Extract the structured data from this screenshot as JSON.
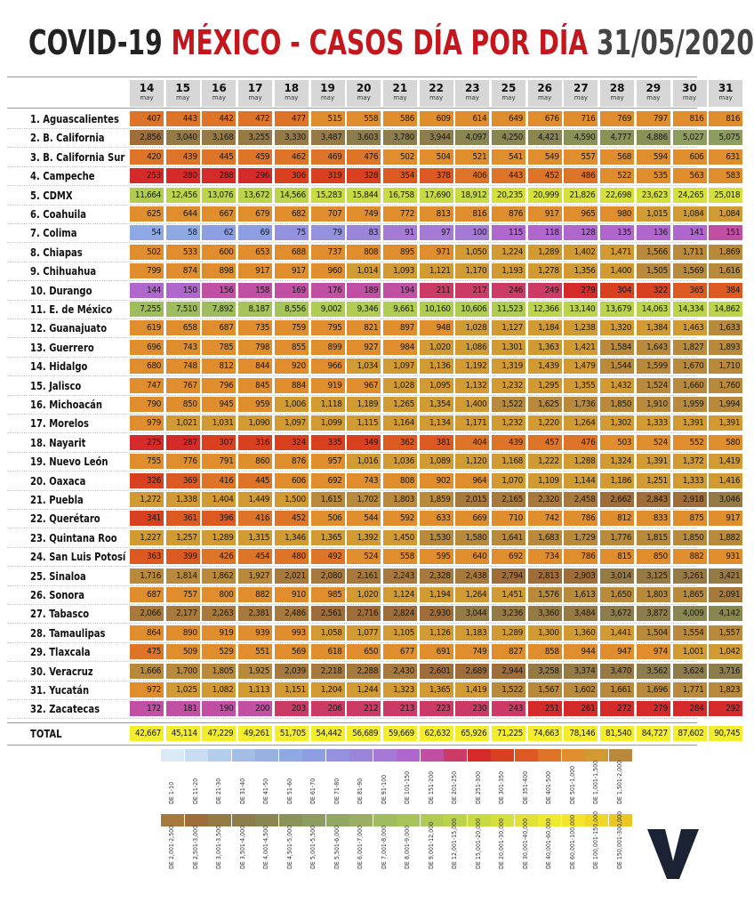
{
  "title": {
    "part1": "COVID-19 ",
    "part2": "MÉXICO - CASOS DÍA POR DÍA ",
    "part3": "31/05/2020"
  },
  "chart_data": {
    "type": "table",
    "month_label": "may",
    "days": [
      "14",
      "15",
      "16",
      "17",
      "18",
      "19",
      "20",
      "21",
      "22",
      "23",
      "25",
      "26",
      "27",
      "28",
      "29",
      "30",
      "31"
    ],
    "rows": [
      {
        "label": "1. Aguascalientes",
        "values": [
          407,
          443,
          442,
          472,
          477,
          515,
          558,
          586,
          609,
          614,
          649,
          676,
          716,
          769,
          797,
          816,
          816
        ]
      },
      {
        "label": "2. B. California",
        "values": [
          2856,
          3040,
          3168,
          3255,
          3330,
          3487,
          3603,
          3780,
          3944,
          4097,
          4250,
          4421,
          4590,
          4777,
          4886,
          5027,
          5075
        ]
      },
      {
        "label": "3. B. California Sur",
        "values": [
          420,
          439,
          445,
          459,
          462,
          469,
          476,
          502,
          504,
          521,
          541,
          549,
          557,
          568,
          594,
          606,
          631
        ]
      },
      {
        "label": "4. Campeche",
        "values": [
          253,
          280,
          288,
          296,
          306,
          319,
          328,
          354,
          378,
          406,
          443,
          452,
          486,
          522,
          535,
          563,
          583
        ]
      },
      {
        "label": "5. CDMX",
        "values": [
          11664,
          12456,
          13076,
          13672,
          14566,
          15283,
          15844,
          16758,
          17690,
          18912,
          20235,
          20999,
          21826,
          22698,
          23623,
          24265,
          25018
        ]
      },
      {
        "label": "6. Coahuila",
        "values": [
          625,
          644,
          667,
          679,
          682,
          707,
          749,
          772,
          813,
          816,
          876,
          917,
          965,
          980,
          1015,
          1084,
          1084
        ]
      },
      {
        "label": "7. Colima",
        "values": [
          54,
          58,
          62,
          69,
          75,
          79,
          83,
          91,
          97,
          100,
          115,
          118,
          128,
          135,
          136,
          141,
          151
        ]
      },
      {
        "label": "8. Chiapas",
        "values": [
          502,
          533,
          600,
          653,
          688,
          737,
          808,
          895,
          971,
          1050,
          1224,
          1289,
          1402,
          1471,
          1566,
          1711,
          1869
        ]
      },
      {
        "label": "9. Chihuahua",
        "values": [
          799,
          874,
          898,
          917,
          917,
          960,
          1014,
          1093,
          1121,
          1170,
          1193,
          1278,
          1356,
          1400,
          1505,
          1569,
          1616
        ]
      },
      {
        "label": "10. Durango",
        "values": [
          144,
          150,
          156,
          158,
          169,
          176,
          189,
          194,
          211,
          217,
          246,
          249,
          279,
          304,
          322,
          365,
          384
        ]
      },
      {
        "label": "11. E. de México",
        "values": [
          7255,
          7510,
          7892,
          8187,
          8556,
          9002,
          9346,
          9661,
          10160,
          10606,
          11523,
          12366,
          13140,
          13679,
          14063,
          14334,
          14862
        ]
      },
      {
        "label": "12. Guanajuato",
        "values": [
          619,
          658,
          687,
          735,
          759,
          795,
          821,
          897,
          948,
          1028,
          1127,
          1184,
          1238,
          1320,
          1384,
          1463,
          1633
        ]
      },
      {
        "label": "13. Guerrero",
        "values": [
          696,
          743,
          785,
          798,
          855,
          899,
          927,
          984,
          1020,
          1086,
          1301,
          1363,
          1421,
          1584,
          1643,
          1827,
          1893
        ]
      },
      {
        "label": "14. Hidalgo",
        "values": [
          680,
          748,
          812,
          844,
          920,
          966,
          1034,
          1097,
          1136,
          1192,
          1319,
          1439,
          1479,
          1544,
          1599,
          1670,
          1710
        ]
      },
      {
        "label": "15. Jalisco",
        "values": [
          747,
          767,
          796,
          845,
          884,
          919,
          967,
          1028,
          1095,
          1132,
          1232,
          1295,
          1355,
          1432,
          1524,
          1660,
          1760
        ]
      },
      {
        "label": "16. Michoacán",
        "values": [
          790,
          850,
          945,
          959,
          1006,
          1118,
          1189,
          1265,
          1354,
          1400,
          1522,
          1625,
          1736,
          1850,
          1910,
          1959,
          1994
        ]
      },
      {
        "label": "17. Morelos",
        "values": [
          979,
          1021,
          1031,
          1090,
          1097,
          1099,
          1115,
          1164,
          1134,
          1171,
          1232,
          1220,
          1264,
          1302,
          1333,
          1391,
          1391
        ]
      },
      {
        "label": "18. Nayarit",
        "values": [
          275,
          287,
          307,
          316,
          324,
          335,
          349,
          362,
          381,
          404,
          439,
          457,
          476,
          503,
          524,
          552,
          580
        ]
      },
      {
        "label": "19. Nuevo León",
        "values": [
          755,
          776,
          791,
          860,
          876,
          957,
          1016,
          1036,
          1089,
          1120,
          1168,
          1222,
          1288,
          1324,
          1391,
          1372,
          1419
        ]
      },
      {
        "label": "20. Oaxaca",
        "values": [
          326,
          369,
          416,
          445,
          606,
          692,
          743,
          808,
          902,
          964,
          1070,
          1109,
          1144,
          1186,
          1251,
          1333,
          1416
        ]
      },
      {
        "label": "21. Puebla",
        "values": [
          1272,
          1338,
          1404,
          1449,
          1500,
          1615,
          1702,
          1803,
          1859,
          2015,
          2165,
          2320,
          2458,
          2662,
          2843,
          2918,
          3046
        ]
      },
      {
        "label": "22. Querétaro",
        "values": [
          341,
          361,
          396,
          416,
          452,
          506,
          544,
          592,
          633,
          669,
          710,
          742,
          786,
          812,
          833,
          875,
          917
        ]
      },
      {
        "label": "23. Quintana Roo",
        "values": [
          1227,
          1257,
          1289,
          1315,
          1346,
          1365,
          1392,
          1450,
          1530,
          1580,
          1641,
          1683,
          1729,
          1776,
          1815,
          1850,
          1882
        ]
      },
      {
        "label": "24. San Luis Potosí",
        "values": [
          363,
          399,
          426,
          454,
          480,
          492,
          524,
          558,
          595,
          640,
          692,
          734,
          786,
          815,
          850,
          882,
          931
        ]
      },
      {
        "label": "25. Sinaloa",
        "values": [
          1716,
          1814,
          1862,
          1927,
          2021,
          2080,
          2161,
          2243,
          2328,
          2438,
          2794,
          2813,
          2903,
          3014,
          3125,
          3261,
          3421
        ]
      },
      {
        "label": "26. Sonora",
        "values": [
          687,
          757,
          800,
          882,
          910,
          985,
          1020,
          1124,
          1194,
          1264,
          1451,
          1576,
          1613,
          1650,
          1803,
          1865,
          2091
        ]
      },
      {
        "label": "27. Tabasco",
        "values": [
          2066,
          2177,
          2263,
          2381,
          2486,
          2561,
          2716,
          2824,
          2930,
          3044,
          3236,
          3360,
          3484,
          3672,
          3872,
          4009,
          4142
        ]
      },
      {
        "label": "28. Tamaulipas",
        "values": [
          864,
          890,
          919,
          939,
          993,
          1058,
          1077,
          1105,
          1126,
          1183,
          1289,
          1300,
          1360,
          1441,
          1504,
          1554,
          1557
        ]
      },
      {
        "label": "29. Tlaxcala",
        "values": [
          475,
          509,
          529,
          551,
          569,
          618,
          650,
          677,
          691,
          749,
          827,
          858,
          944,
          947,
          974,
          1001,
          1042
        ]
      },
      {
        "label": "30. Veracruz",
        "values": [
          1666,
          1700,
          1805,
          1925,
          2039,
          2218,
          2288,
          2430,
          2601,
          2689,
          2944,
          3258,
          3374,
          3470,
          3562,
          3624,
          3716
        ]
      },
      {
        "label": "31. Yucatán",
        "values": [
          972,
          1025,
          1082,
          1113,
          1151,
          1204,
          1244,
          1323,
          1365,
          1419,
          1522,
          1567,
          1602,
          1661,
          1696,
          1771,
          1823
        ]
      },
      {
        "label": "32. Zacatecas",
        "values": [
          172,
          181,
          190,
          200,
          203,
          206,
          212,
          213,
          223,
          230,
          243,
          251,
          261,
          272,
          279,
          284,
          292
        ]
      }
    ],
    "total": {
      "label": "TOTAL",
      "values": [
        42667,
        45114,
        47229,
        49261,
        51705,
        54442,
        56689,
        59669,
        62632,
        65926,
        71225,
        74663,
        78146,
        81540,
        84727,
        87602,
        90745
      ]
    },
    "legend": [
      {
        "label": "DE 1-10",
        "max": 10,
        "color": "#dce9f7"
      },
      {
        "label": "DE 11-20",
        "max": 20,
        "color": "#c9dcf2"
      },
      {
        "label": "DE 21-30",
        "max": 30,
        "color": "#b4cdec"
      },
      {
        "label": "DE 31-40",
        "max": 40,
        "color": "#a4bde6"
      },
      {
        "label": "DE 41-50",
        "max": 50,
        "color": "#98b1e1"
      },
      {
        "label": "DE 51-60",
        "max": 60,
        "color": "#8ea9e4"
      },
      {
        "label": "DE 61-70",
        "max": 70,
        "color": "#8d9ee2"
      },
      {
        "label": "DE 71-80",
        "max": 80,
        "color": "#9492de"
      },
      {
        "label": "DE 81-90",
        "max": 90,
        "color": "#9a85d9"
      },
      {
        "label": "DE 91-100",
        "max": 100,
        "color": "#a57ad4"
      },
      {
        "label": "DE 101-150",
        "max": 150,
        "color": "#b067cd"
      },
      {
        "label": "DE 151-200",
        "max": 200,
        "color": "#c14fa3"
      },
      {
        "label": "DE 201-250",
        "max": 250,
        "color": "#cc3a66"
      },
      {
        "label": "DE 251-300",
        "max": 300,
        "color": "#d42a2a"
      },
      {
        "label": "DE 301-350",
        "max": 350,
        "color": "#d8401f"
      },
      {
        "label": "DE 351-400",
        "max": 400,
        "color": "#dc5a22"
      },
      {
        "label": "DE 401-500",
        "max": 500,
        "color": "#de7428"
      },
      {
        "label": "DE 501-1,000",
        "max": 1000,
        "color": "#df8d2d"
      },
      {
        "label": "DE 1,001-1,500",
        "max": 1500,
        "color": "#d29a33"
      },
      {
        "label": "DE 1,501-2,000",
        "max": 2000,
        "color": "#b98a3b"
      },
      {
        "label": "DE 2,001-2,500",
        "max": 2500,
        "color": "#a8793c"
      },
      {
        "label": "DE 2,501-3,000",
        "max": 3000,
        "color": "#9f6d3a"
      },
      {
        "label": "DE 3,001-3,500",
        "max": 3500,
        "color": "#967a45"
      },
      {
        "label": "DE 3,501-4,000",
        "max": 4000,
        "color": "#8d7d4c"
      },
      {
        "label": "DE 4,001-4,500",
        "max": 4500,
        "color": "#898651"
      },
      {
        "label": "DE 4,501-5,000",
        "max": 5000,
        "color": "#8a9258"
      },
      {
        "label": "DE 5,001-5,500",
        "max": 5500,
        "color": "#8d9c5f"
      },
      {
        "label": "DE 5,501-6,000",
        "max": 6000,
        "color": "#93a765"
      },
      {
        "label": "DE 6,001-7,000",
        "max": 7000,
        "color": "#9aaf63"
      },
      {
        "label": "DE 7,001-8,000",
        "max": 8000,
        "color": "#9fbd5f"
      },
      {
        "label": "DE 8,001-9,000",
        "max": 9000,
        "color": "#a6c45a"
      },
      {
        "label": "DE 9,001-12,000",
        "max": 12000,
        "color": "#b0cc52"
      },
      {
        "label": "DE 12,001-15,000",
        "max": 15000,
        "color": "#bcd44c"
      },
      {
        "label": "DE 15,001-20,000",
        "max": 20000,
        "color": "#c8da44"
      },
      {
        "label": "DE 20,001-30,000",
        "max": 30000,
        "color": "#d6e03c"
      },
      {
        "label": "DE 30,001-40,000",
        "max": 40000,
        "color": "#e2e236"
      },
      {
        "label": "DE 40,001-60,000",
        "max": 60000,
        "color": "#eeea30"
      },
      {
        "label": "DE 60,001-100,000",
        "max": 100000,
        "color": "#f3e42c"
      },
      {
        "label": "DE 100,001-150,000",
        "max": 150000,
        "color": "#f0d828"
      },
      {
        "label": "DE 150,001-300,000",
        "max": 300000,
        "color": "#eac722"
      }
    ]
  },
  "colors": {
    "title_red": "#c4161c",
    "header_gray": "#d7d7d7",
    "logo": "#1a2233"
  },
  "logo": {
    "letter": "V"
  }
}
